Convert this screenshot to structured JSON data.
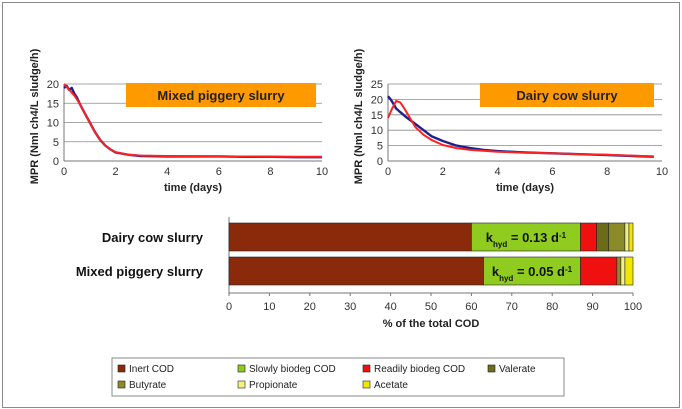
{
  "colors": {
    "measured": "#1f1f8f",
    "model": "#ff2020",
    "title_box": "#ff9900",
    "inert": "#8b2a0a",
    "slowly": "#8fcc1f",
    "readily": "#f01010",
    "valerate": "#6b6b1a",
    "butyrate": "#8b8b2a",
    "propionate": "#f2f280",
    "acetate": "#f2e600"
  },
  "chart_data": [
    {
      "type": "line",
      "title": "Mixed piggery slurry",
      "xlabel": "time (days)",
      "ylabel": "MPR (Nml ch4/L sludge/h)",
      "xlim": [
        0,
        10
      ],
      "ylim": [
        0,
        20
      ],
      "xticks": [
        "0",
        "2",
        "4",
        "6",
        "8",
        "10"
      ],
      "yticks": [
        "0",
        "5",
        "10",
        "15",
        "20"
      ],
      "grid": true,
      "series": [
        {
          "key": "measured",
          "x": [
            0,
            0.1,
            0.2,
            0.3,
            0.4,
            0.5,
            0.6,
            0.8,
            1.0,
            1.2,
            1.4,
            1.6,
            1.8,
            2.0,
            2.5,
            3.0,
            4.0,
            5.0,
            6.0,
            7.0,
            8.0,
            9.0,
            10.0
          ],
          "y": [
            19,
            19.5,
            18.5,
            19,
            17.5,
            16.5,
            15,
            12.5,
            10,
            7.5,
            5.5,
            4,
            3,
            2.2,
            1.6,
            1.3,
            1.2,
            1.2,
            1.2,
            1.1,
            1.1,
            1.0,
            1.0
          ]
        },
        {
          "key": "model",
          "x": [
            0,
            0.2,
            0.4,
            0.6,
            0.8,
            1.0,
            1.2,
            1.4,
            1.6,
            1.8,
            2.0,
            2.5,
            3.0,
            4.0,
            6.0,
            8.0,
            10.0
          ],
          "y": [
            20,
            18.5,
            17,
            15,
            12.5,
            10,
            7.5,
            5.5,
            4,
            3,
            2.3,
            1.6,
            1.4,
            1.3,
            1.2,
            1.1,
            1.1
          ]
        }
      ]
    },
    {
      "type": "line",
      "title": "Dairy cow slurry",
      "xlabel": "time (days)",
      "ylabel": "MPR (Nml ch4/L sludge/h)",
      "xlim": [
        0,
        10
      ],
      "ylim": [
        0,
        25
      ],
      "xticks": [
        "0",
        "2",
        "4",
        "6",
        "8",
        "10"
      ],
      "yticks": [
        "0",
        "5",
        "10",
        "15",
        "20",
        "25"
      ],
      "grid": true,
      "series": [
        {
          "key": "measured",
          "x": [
            0,
            0.1,
            0.2,
            0.3,
            0.5,
            0.7,
            1.0,
            1.3,
            1.6,
            2.0,
            2.5,
            3.0,
            3.5,
            4.0,
            5.0,
            6.0,
            7.0,
            8.0,
            9.0,
            9.7
          ],
          "y": [
            21,
            20,
            18.5,
            17,
            15.5,
            14,
            12,
            10,
            8,
            6.5,
            5,
            4.2,
            3.6,
            3.2,
            2.8,
            2.5,
            2.2,
            1.9,
            1.6,
            1.4
          ]
        },
        {
          "key": "model",
          "x": [
            0,
            0.15,
            0.3,
            0.45,
            0.6,
            0.8,
            1.0,
            1.3,
            1.6,
            2.0,
            2.5,
            3.0,
            4.0,
            5.0,
            6.0,
            7.0,
            8.0,
            9.0,
            9.7
          ],
          "y": [
            14,
            17,
            19.5,
            19,
            17,
            14,
            11,
            8.5,
            6.8,
            5.2,
            4.2,
            3.6,
            3,
            2.7,
            2.5,
            2.2,
            2,
            1.7,
            1.5
          ]
        }
      ]
    },
    {
      "type": "bar",
      "orientation": "horizontal",
      "stacked": true,
      "categories": [
        "Dairy cow slurry",
        "Mixed piggery slurry"
      ],
      "xlabel": "% of the total COD",
      "xlim": [
        0,
        100
      ],
      "xticks": [
        "0",
        "10",
        "20",
        "30",
        "40",
        "50",
        "60",
        "70",
        "80",
        "90",
        "100"
      ],
      "legend_position": "bottom",
      "series": [
        {
          "name": "Inert COD",
          "key": "inert",
          "values": [
            60,
            63
          ]
        },
        {
          "name": "Slowly biodeg COD",
          "key": "slowly",
          "values": [
            27,
            24
          ]
        },
        {
          "name": "Readily biodeg COD",
          "key": "readily",
          "values": [
            4,
            9
          ]
        },
        {
          "name": "Valerate",
          "key": "valerate",
          "values": [
            3,
            0
          ]
        },
        {
          "name": "Butyrate",
          "key": "butyrate",
          "values": [
            4,
            1
          ]
        },
        {
          "name": "Propionate",
          "key": "propionate",
          "values": [
            1,
            1
          ]
        },
        {
          "name": "Acetate",
          "key": "acetate",
          "values": [
            1,
            2
          ]
        }
      ],
      "annotations": [
        {
          "category": "Dairy cow slurry",
          "k_main": "k",
          "k_sub": "hyd",
          "k_rest": " = 0.13 d",
          "k_sup": "-1"
        },
        {
          "category": "Mixed piggery slurry",
          "k_main": "k",
          "k_sub": "hyd",
          "k_rest": " = 0.05 d",
          "k_sup": "-1"
        }
      ]
    }
  ]
}
